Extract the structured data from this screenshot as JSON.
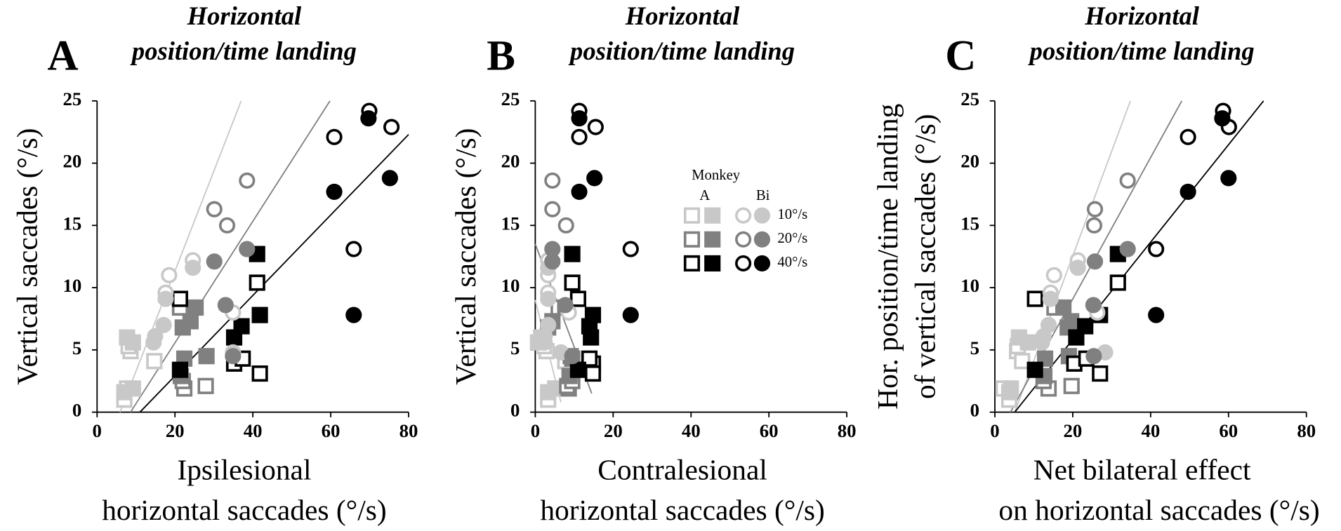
{
  "chart_data": [
    {
      "type": "scatter",
      "panel": "A",
      "title": [
        "Horizontal",
        "position/time landing"
      ],
      "xlabel": [
        "Ipsilesional",
        "horizontal saccades (°/s)"
      ],
      "ylabel": [
        "Vertical saccades (°/s)"
      ],
      "xlim": [
        0,
        80
      ],
      "ylim": [
        0,
        25
      ],
      "xticks": [
        0,
        20,
        40,
        60,
        80
      ],
      "yticks": [
        0,
        5,
        10,
        15,
        20,
        25
      ],
      "series": [
        {
          "color": "#c8c8c8",
          "marker": "square",
          "filled": false,
          "x": [
            7.0,
            7.7,
            8.6,
            14.7,
            8.1
          ],
          "y": [
            1.0,
            1.9,
            4.9,
            4.1,
            5.3
          ]
        },
        {
          "color": "#c8c8c8",
          "marker": "square",
          "filled": true,
          "x": [
            7.0,
            9.2,
            7.7,
            9.2
          ],
          "y": [
            1.6,
            1.9,
            6.0,
            5.6
          ]
        },
        {
          "color": "#808080",
          "marker": "square",
          "filled": false,
          "x": [
            22.4,
            27.9,
            22.0,
            21.3
          ],
          "y": [
            1.9,
            2.1,
            2.5,
            8.4
          ]
        },
        {
          "color": "#808080",
          "marker": "square",
          "filled": true,
          "x": [
            22.0,
            24.0,
            25.3,
            28.1,
            22.4,
            21.5
          ],
          "y": [
            6.8,
            7.3,
            8.4,
            4.5,
            4.3,
            2.9
          ]
        },
        {
          "color": "#000000",
          "marker": "square",
          "filled": false,
          "x": [
            21.3,
            41.1,
            35.2,
            37.4,
            41.8
          ],
          "y": [
            9.1,
            10.4,
            3.9,
            4.3,
            3.1
          ]
        },
        {
          "color": "#000000",
          "marker": "square",
          "filled": true,
          "x": [
            21.3,
            41.1,
            35.2,
            37.1,
            41.8
          ],
          "y": [
            3.4,
            12.7,
            6.0,
            6.9,
            7.8
          ]
        },
        {
          "color": "#c8c8c8",
          "marker": "circle",
          "filled": false,
          "x": [
            18.5,
            17.6,
            24.6,
            34.9
          ],
          "y": [
            11.0,
            9.6,
            12.2,
            8.0
          ]
        },
        {
          "color": "#c8c8c8",
          "marker": "circle",
          "filled": true,
          "x": [
            17.6,
            17.1,
            14.9,
            24.6,
            14.5,
            34.9
          ],
          "y": [
            9.1,
            7.0,
            6.1,
            11.6,
            5.6,
            4.8
          ]
        },
        {
          "color": "#808080",
          "marker": "circle",
          "filled": false,
          "x": [
            38.5,
            30.1,
            33.4
          ],
          "y": [
            18.6,
            16.3,
            15.0
          ]
        },
        {
          "color": "#808080",
          "marker": "circle",
          "filled": true,
          "x": [
            30.1,
            38.5,
            33.0,
            34.9
          ],
          "y": [
            12.1,
            13.1,
            8.6,
            4.5
          ]
        },
        {
          "color": "#000000",
          "marker": "circle",
          "filled": false,
          "x": [
            69.9,
            75.6,
            60.9,
            65.9
          ],
          "y": [
            24.2,
            22.9,
            22.1,
            13.1
          ]
        },
        {
          "color": "#000000",
          "marker": "circle",
          "filled": true,
          "x": [
            69.7,
            75.2,
            60.9,
            65.9
          ],
          "y": [
            23.6,
            18.8,
            17.7,
            7.8
          ]
        }
      ],
      "fits": [
        {
          "color": "#c8c8c8",
          "x": [
            5.9,
            37
          ],
          "y": [
            0,
            25
          ]
        },
        {
          "color": "#808080",
          "x": [
            8.6,
            59.8
          ],
          "y": [
            0,
            25
          ]
        },
        {
          "color": "#000000",
          "x": [
            11,
            80
          ],
          "y": [
            0,
            22.3
          ]
        }
      ]
    },
    {
      "type": "scatter",
      "panel": "B",
      "title": [
        "Horizontal",
        "position/time landing"
      ],
      "xlabel": [
        "Contralesional",
        "horizontal saccades (°/s)"
      ],
      "ylabel": [
        "Vertical saccades (°/s)"
      ],
      "xlim": [
        0,
        80
      ],
      "ylim": [
        0,
        25
      ],
      "xticks": [
        0,
        20,
        40,
        60,
        80
      ],
      "yticks": [
        0,
        5,
        10,
        15,
        20,
        25
      ],
      "series": [
        {
          "color": "#c8c8c8",
          "marker": "square",
          "filled": false,
          "x": [
            3.3,
            5.5,
            2.9,
            7.7,
            2.2
          ],
          "y": [
            1.0,
            1.9,
            4.9,
            4.1,
            5.3
          ]
        },
        {
          "color": "#c8c8c8",
          "marker": "square",
          "filled": true,
          "x": [
            3.3,
            5.1,
            1.5,
            0.7
          ],
          "y": [
            1.6,
            1.9,
            6.0,
            5.6
          ]
        },
        {
          "color": "#808080",
          "marker": "square",
          "filled": false,
          "x": [
            8.6,
            8.2,
            9.5,
            6.0
          ],
          "y": [
            1.9,
            2.1,
            2.5,
            8.4
          ]
        },
        {
          "color": "#808080",
          "marker": "square",
          "filled": true,
          "x": [
            3.3,
            4.4,
            7.7,
            9.1,
            9.5,
            8.8
          ],
          "y": [
            6.8,
            7.3,
            8.4,
            4.5,
            4.3,
            2.9
          ]
        },
        {
          "color": "#000000",
          "marker": "square",
          "filled": false,
          "x": [
            11.0,
            9.5,
            14.8,
            13.9,
            14.8
          ],
          "y": [
            9.1,
            10.4,
            3.9,
            4.3,
            3.1
          ]
        },
        {
          "color": "#000000",
          "marker": "square",
          "filled": true,
          "x": [
            11.0,
            9.5,
            14.3,
            13.9,
            14.8
          ],
          "y": [
            3.4,
            12.7,
            6.0,
            6.9,
            7.8
          ]
        },
        {
          "color": "#c8c8c8",
          "marker": "circle",
          "filled": false,
          "x": [
            3.3,
            3.3,
            3.3,
            8.6
          ],
          "y": [
            11.0,
            9.6,
            12.2,
            8.0
          ]
        },
        {
          "color": "#c8c8c8",
          "marker": "circle",
          "filled": true,
          "x": [
            3.3,
            3.3,
            2.4,
            3.3,
            2.4,
            6.6
          ],
          "y": [
            9.1,
            7.0,
            6.1,
            11.6,
            5.6,
            4.8
          ]
        },
        {
          "color": "#808080",
          "marker": "circle",
          "filled": false,
          "x": [
            4.4,
            4.4,
            7.9
          ],
          "y": [
            18.6,
            16.3,
            15.0
          ]
        },
        {
          "color": "#808080",
          "marker": "circle",
          "filled": true,
          "x": [
            4.4,
            4.4,
            7.7,
            9.5
          ],
          "y": [
            12.1,
            13.1,
            8.6,
            4.5
          ]
        },
        {
          "color": "#000000",
          "marker": "circle",
          "filled": false,
          "x": [
            11.3,
            15.5,
            11.3,
            24.5
          ],
          "y": [
            24.2,
            22.9,
            22.1,
            13.1
          ]
        },
        {
          "color": "#000000",
          "marker": "circle",
          "filled": true,
          "x": [
            11.3,
            15.2,
            11.3,
            24.5
          ],
          "y": [
            23.6,
            18.8,
            17.7,
            7.8
          ]
        }
      ],
      "fits": [
        {
          "color": "#c8c8c8",
          "x": [
            0,
            6.6
          ],
          "y": [
            9,
            0.8
          ]
        },
        {
          "color": "#808080",
          "x": [
            0,
            14.5
          ],
          "y": [
            13.5,
            1.5
          ]
        }
      ]
    },
    {
      "type": "scatter",
      "panel": "C",
      "title": [
        "Horizontal",
        "position/time landing"
      ],
      "xlabel": [
        "Net bilateral effect",
        "on horizontal saccades (°/s)"
      ],
      "ylabel": [
        "Hor. position/time landing",
        "of vertical saccades (°/s)"
      ],
      "xlim": [
        0,
        80
      ],
      "ylim": [
        0,
        25
      ],
      "xticks": [
        0,
        20,
        40,
        60,
        80
      ],
      "yticks": [
        0,
        5,
        10,
        15,
        20,
        25
      ],
      "series": [
        {
          "color": "#c8c8c8",
          "marker": "square",
          "filled": false,
          "x": [
            3.7,
            2.2,
            5.7,
            7.0,
            5.9
          ],
          "y": [
            1.0,
            1.9,
            4.9,
            4.1,
            5.3
          ]
        },
        {
          "color": "#c8c8c8",
          "marker": "square",
          "filled": true,
          "x": [
            3.7,
            4.1,
            6.2,
            8.5
          ],
          "y": [
            1.6,
            1.9,
            6.0,
            5.6
          ]
        },
        {
          "color": "#808080",
          "marker": "square",
          "filled": false,
          "x": [
            13.8,
            19.7,
            12.5,
            15.3
          ],
          "y": [
            1.9,
            2.1,
            2.5,
            8.4
          ]
        },
        {
          "color": "#808080",
          "marker": "square",
          "filled": true,
          "x": [
            18.7,
            19.6,
            17.6,
            19.0,
            12.9,
            12.7
          ],
          "y": [
            6.8,
            7.3,
            8.4,
            4.5,
            4.3,
            2.9
          ]
        },
        {
          "color": "#000000",
          "marker": "square",
          "filled": false,
          "x": [
            10.3,
            31.6,
            20.4,
            23.5,
            27.0
          ],
          "y": [
            9.1,
            10.4,
            3.9,
            4.3,
            3.1
          ]
        },
        {
          "color": "#000000",
          "marker": "square",
          "filled": true,
          "x": [
            10.3,
            31.6,
            20.9,
            23.2,
            27.0
          ],
          "y": [
            3.4,
            12.7,
            6.0,
            6.9,
            7.8
          ]
        },
        {
          "color": "#c8c8c8",
          "marker": "circle",
          "filled": false,
          "x": [
            15.2,
            14.3,
            21.3,
            26.3
          ],
          "y": [
            11.0,
            9.6,
            12.2,
            8.0
          ]
        },
        {
          "color": "#c8c8c8",
          "marker": "circle",
          "filled": true,
          "x": [
            14.3,
            13.8,
            12.5,
            21.3,
            12.1,
            28.3
          ],
          "y": [
            9.1,
            7.0,
            6.1,
            11.6,
            5.6,
            4.8
          ]
        },
        {
          "color": "#808080",
          "marker": "circle",
          "filled": false,
          "x": [
            34.1,
            25.7,
            25.5
          ],
          "y": [
            18.6,
            16.3,
            15.0
          ]
        },
        {
          "color": "#808080",
          "marker": "circle",
          "filled": true,
          "x": [
            25.7,
            34.1,
            25.3,
            25.4
          ],
          "y": [
            12.1,
            13.1,
            8.6,
            4.5
          ]
        },
        {
          "color": "#000000",
          "marker": "circle",
          "filled": false,
          "x": [
            58.6,
            60.1,
            49.6,
            41.4
          ],
          "y": [
            24.2,
            22.9,
            22.1,
            13.1
          ]
        },
        {
          "color": "#000000",
          "marker": "circle",
          "filled": true,
          "x": [
            58.4,
            60.0,
            49.6,
            41.4
          ],
          "y": [
            23.6,
            18.8,
            17.7,
            7.8
          ]
        }
      ],
      "fits": [
        {
          "color": "#c8c8c8",
          "x": [
            5.1,
            34.8
          ],
          "y": [
            0,
            25
          ]
        },
        {
          "color": "#808080",
          "x": [
            4.0,
            48.0
          ],
          "y": [
            0,
            25
          ]
        },
        {
          "color": "#000000",
          "x": [
            5.1,
            69
          ],
          "y": [
            0,
            25
          ]
        }
      ]
    }
  ],
  "legend": {
    "title": "Monkey",
    "columns": [
      "A",
      "Bi"
    ],
    "rows": [
      "10°/s",
      "20°/s",
      "40°/s"
    ],
    "colors": [
      "#c8c8c8",
      "#808080",
      "#000000"
    ]
  }
}
